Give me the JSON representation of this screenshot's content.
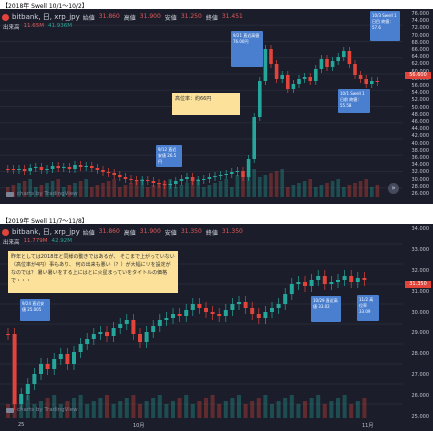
{
  "chart1": {
    "caption": "【2018年 Swell 10/1～10/2】",
    "title": "bitbank, 日, xrp_jpy",
    "ohlc": {
      "open_label": "始値",
      "open": "31.860",
      "high_label": "高値",
      "high": "31.900",
      "low_label": "安値",
      "low": "31.250",
      "close_label": "終値",
      "close": "31.451"
    },
    "volume_label": "出来高",
    "volume_a": "11.65M",
    "volume_b": "41.936M",
    "yaxis_ticks": [
      "76.000",
      "74.000",
      "72.000",
      "70.000",
      "68.000",
      "66.000",
      "64.000",
      "62.000",
      "60.000",
      "58.000",
      "56.000",
      "54.000",
      "52.000",
      "50.000",
      "48.000",
      "46.000",
      "44.000",
      "42.000",
      "40.000",
      "38.000",
      "36.000",
      "34.000",
      "32.000",
      "30.000",
      "28.000",
      "26.000"
    ],
    "current_price": "56.600",
    "notes": [
      {
        "text": "9/12 直近安値 26.5円"
      },
      {
        "text": "9/21 直近高値 76.00円"
      },
      {
        "text": "10/3 Swell 1日目 終値：57.6"
      },
      {
        "text": "10/1 Swell 1日前 終値：55.58"
      }
    ],
    "yellow_note": "高位率：約66円",
    "watermark": "charts by TradingView",
    "scroll_icon": "»",
    "up_color": "#26a69a",
    "down_color": "#e0443a"
  },
  "chart2": {
    "caption": "【2019年 Swell 11/7～11/8】",
    "title": "bitbank, 日, xrp_jpy",
    "ohlc": {
      "open_label": "始値",
      "open": "31.860",
      "high_label": "高値",
      "high": "31.900",
      "low_label": "安値",
      "low": "31.350",
      "close_label": "終値",
      "close": "31.350"
    },
    "volume_label": "出来高",
    "volume_a": "11.779M",
    "volume_b": "42.92M",
    "yaxis_ticks": [
      "34.000",
      "33.000",
      "32.000",
      "31.000",
      "30.000",
      "29.000",
      "28.000",
      "27.000",
      "26.000",
      "25.000"
    ],
    "current_price": "31.350",
    "notes": [
      {
        "text": "9/24 直近安値 25.005"
      },
      {
        "text": "10/29 直近高値 33.02"
      },
      {
        "text": "11/2 高位率 33.09"
      }
    ],
    "yellow_note": "昨年としては2018年と同様の動きではあるが、 そこまで上がっていない（高位率が4円）事もあり、 何の出来も悪い（？）が大幅にリを設定がなのでは？ 暑い暑いをする上にはとに火星まっていをタイトルの価格で・・・",
    "watermark": "charts by TradingView",
    "xaxis": [
      "25",
      "10月",
      "11月"
    ]
  }
}
